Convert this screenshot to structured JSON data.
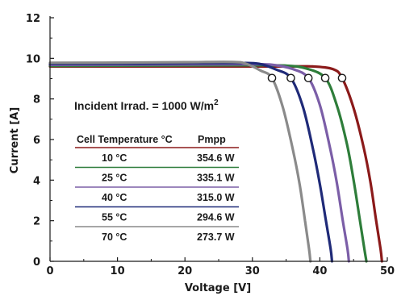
{
  "chart_data": {
    "type": "line",
    "xlabel": "Voltage [V]",
    "ylabel": "Current [A]",
    "xlim": [
      0,
      50
    ],
    "ylim": [
      0,
      12
    ],
    "xticks": [
      "0",
      "10",
      "20",
      "30",
      "40",
      "50"
    ],
    "yticks": [
      "0",
      "2",
      "4",
      "6",
      "8",
      "10",
      "12"
    ],
    "annotation": "Incident Irrad. = 1000 W/m",
    "annotation_superscript": "2",
    "table_headers": [
      "Cell Temperature °C",
      "Pmpp"
    ],
    "series": [
      {
        "temperature": "10 °C",
        "pmpp": "354.6 W",
        "color": "#8b1a1a",
        "points": [
          [
            0,
            9.6
          ],
          [
            10,
            9.6
          ],
          [
            20,
            9.6
          ],
          [
            30,
            9.6
          ],
          [
            35,
            9.6
          ],
          [
            39,
            9.6
          ],
          [
            42,
            9.46
          ],
          [
            43.3,
            9.03
          ],
          [
            45,
            7.55
          ],
          [
            46.5,
            5.6
          ],
          [
            47.5,
            3.9
          ],
          [
            48.3,
            2.1
          ],
          [
            49.0,
            0.6
          ],
          [
            49.2,
            0
          ]
        ]
      },
      {
        "temperature": "25 °C",
        "pmpp": "335.1 W",
        "color": "#2e7d3a",
        "points": [
          [
            0,
            9.63
          ],
          [
            10,
            9.64
          ],
          [
            20,
            9.65
          ],
          [
            30,
            9.66
          ],
          [
            35,
            9.64
          ],
          [
            38,
            9.5
          ],
          [
            40.8,
            9.03
          ],
          [
            42.5,
            7.7
          ],
          [
            44,
            5.8
          ],
          [
            45,
            4.0
          ],
          [
            45.9,
            2.1
          ],
          [
            46.6,
            0.6
          ],
          [
            46.9,
            0
          ]
        ]
      },
      {
        "temperature": "40 °C",
        "pmpp": "315.0 W",
        "color": "#7b5ea7",
        "points": [
          [
            0,
            9.68
          ],
          [
            10,
            9.69
          ],
          [
            20,
            9.7
          ],
          [
            30,
            9.71
          ],
          [
            33,
            9.68
          ],
          [
            36,
            9.47
          ],
          [
            38.3,
            9.03
          ],
          [
            40,
            7.7
          ],
          [
            41.5,
            5.6
          ],
          [
            42.5,
            3.9
          ],
          [
            43.4,
            2.0
          ],
          [
            44.1,
            0.6
          ],
          [
            44.3,
            0
          ]
        ]
      },
      {
        "temperature": "55 °C",
        "pmpp": "294.6 W",
        "color": "#1f2a78",
        "points": [
          [
            0,
            9.73
          ],
          [
            10,
            9.74
          ],
          [
            20,
            9.76
          ],
          [
            28,
            9.77
          ],
          [
            31,
            9.73
          ],
          [
            33.5,
            9.45
          ],
          [
            35.7,
            9.03
          ],
          [
            37.5,
            7.6
          ],
          [
            39,
            5.5
          ],
          [
            40,
            3.8
          ],
          [
            40.9,
            2.0
          ],
          [
            41.6,
            0.6
          ],
          [
            41.8,
            0
          ]
        ]
      },
      {
        "temperature": "70 °C",
        "pmpp": "273.7 W",
        "color": "#8a8a8a",
        "points": [
          [
            0,
            9.78
          ],
          [
            10,
            9.79
          ],
          [
            20,
            9.81
          ],
          [
            27,
            9.82
          ],
          [
            29,
            9.74
          ],
          [
            31.2,
            9.4
          ],
          [
            32.9,
            9.03
          ],
          [
            34.5,
            7.6
          ],
          [
            36,
            5.5
          ],
          [
            37,
            3.8
          ],
          [
            37.8,
            2.0
          ],
          [
            38.4,
            0.6
          ],
          [
            38.6,
            0
          ]
        ]
      }
    ],
    "mpp_markers": [
      {
        "x": 43.3,
        "y": 9.03
      },
      {
        "x": 40.8,
        "y": 9.03
      },
      {
        "x": 38.3,
        "y": 9.03
      },
      {
        "x": 35.7,
        "y": 9.03
      },
      {
        "x": 32.9,
        "y": 9.03
      }
    ]
  }
}
